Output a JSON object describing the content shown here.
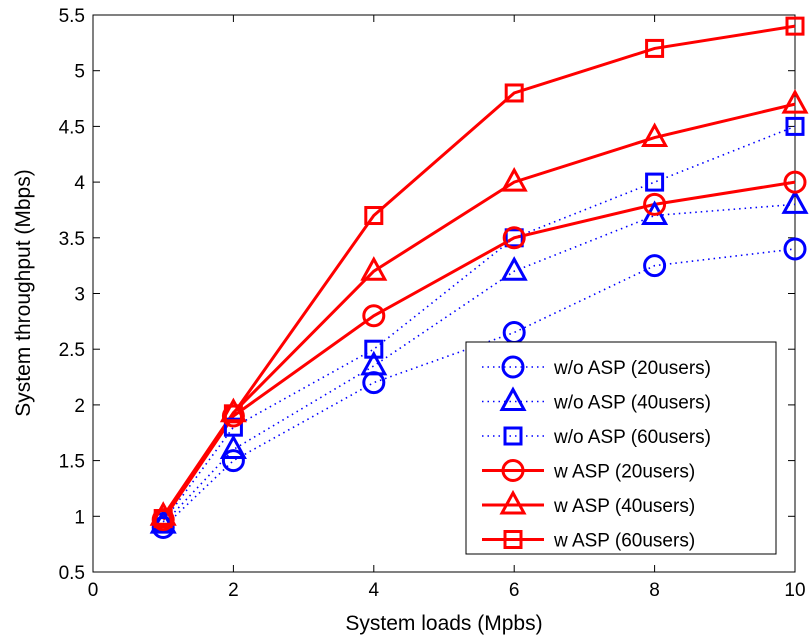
{
  "chart_data": {
    "type": "line",
    "title": "",
    "xlabel": "System loads (Mpbs)",
    "ylabel": "System throughput (Mbps)",
    "xlim": [
      0,
      10
    ],
    "ylim": [
      0.5,
      5.5
    ],
    "xticks": [
      0,
      2,
      4,
      6,
      8,
      10
    ],
    "yticks": [
      0.5,
      1,
      1.5,
      2,
      2.5,
      3,
      3.5,
      4,
      4.5,
      5,
      5.5
    ],
    "grid": false,
    "legend_position": "bottom-right",
    "x": [
      1,
      2,
      4,
      6,
      8,
      10
    ],
    "series": [
      {
        "name": "w/o ASP (20users)",
        "color": "#0000ff",
        "line": "dotted",
        "marker": "circle",
        "values": [
          0.9,
          1.5,
          2.2,
          2.65,
          3.25,
          3.4
        ]
      },
      {
        "name": "w/o ASP (40users)",
        "color": "#0000ff",
        "line": "dotted",
        "marker": "triangle",
        "values": [
          0.93,
          1.6,
          2.35,
          3.2,
          3.7,
          3.8
        ]
      },
      {
        "name": "w/o ASP (60users)",
        "color": "#0000ff",
        "line": "dotted",
        "marker": "square",
        "values": [
          0.95,
          1.8,
          2.5,
          3.5,
          4.0,
          4.5
        ]
      },
      {
        "name": "w ASP (20users)",
        "color": "#ff0000",
        "line": "solid",
        "marker": "circle",
        "values": [
          0.97,
          1.9,
          2.8,
          3.5,
          3.8,
          4.0
        ]
      },
      {
        "name": "w ASP (40users)",
        "color": "#ff0000",
        "line": "solid",
        "marker": "triangle",
        "values": [
          1.0,
          1.93,
          3.2,
          4.0,
          4.4,
          4.7
        ]
      },
      {
        "name": "w ASP (60users)",
        "color": "#ff0000",
        "line": "solid",
        "marker": "square",
        "values": [
          0.98,
          1.92,
          3.7,
          4.8,
          5.2,
          5.4
        ]
      }
    ]
  }
}
